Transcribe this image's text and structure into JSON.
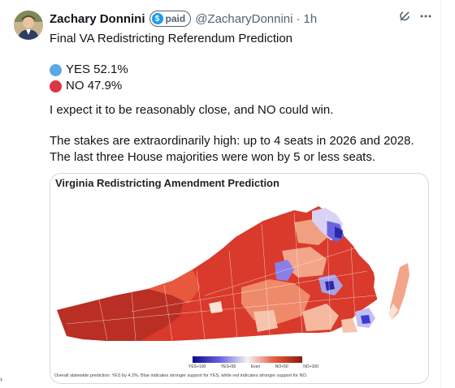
{
  "author": {
    "name": "Zachary Donnini",
    "badge": "paid",
    "badge_symbol": "$",
    "handle": "@ZacharyDonnini",
    "separator": "·",
    "time": "1h"
  },
  "header_icons": [
    "grok-icon",
    "more-icon"
  ],
  "tweet": {
    "title": "Final VA Redistricting Referendum Prediction",
    "poll": [
      {
        "label": "YES 52.1%",
        "color": "#5aa9e6"
      },
      {
        "label": "NO 47.9%",
        "color": "#dc3545"
      }
    ],
    "para1": "I expect it to be reasonably close, and NO could win.",
    "para2": "The stakes are extraordinarily high: up to 4 seats in 2026 and 2028. The last three House majorities were won by 5 or less seats."
  },
  "card": {
    "title": "Virginia Redistricting Amendment Prediction",
    "legend": [
      "YES+100",
      "YES+50",
      "Even",
      "NO+50",
      "NO+100"
    ],
    "footnote": "Overall statewide prediction: YES by 4.2%. Blue indicates stronger support for YES, while red indicates stronger support for NO.",
    "colors": {
      "deep_red": "#c0392b",
      "red": "#e04a32",
      "light_red": "#f3a58a",
      "pale": "#fbe2d6",
      "blue": "#3b3bd6",
      "light_blue": "#a7a0e8"
    }
  },
  "caret": "›"
}
